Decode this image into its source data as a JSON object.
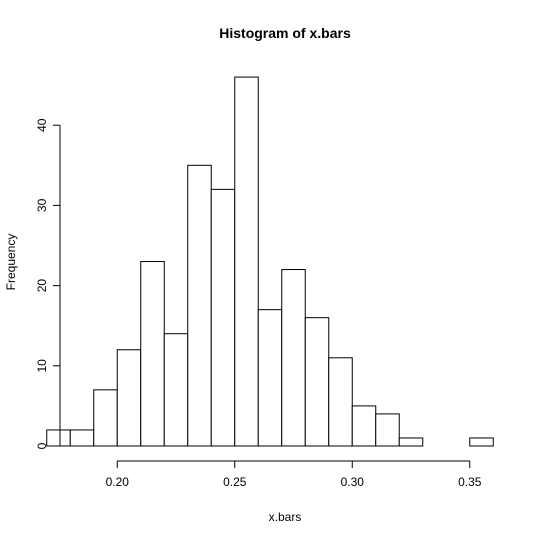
{
  "chart_data": {
    "type": "bar",
    "title": "Histogram of x.bars",
    "xlabel": "x.bars",
    "ylabel": "Frequency",
    "bin_edges": [
      0.17,
      0.18,
      0.19,
      0.2,
      0.21,
      0.22,
      0.23,
      0.24,
      0.25,
      0.26,
      0.27,
      0.28,
      0.29,
      0.3,
      0.31,
      0.32,
      0.33,
      0.34,
      0.35,
      0.36
    ],
    "values": [
      2,
      2,
      7,
      12,
      23,
      14,
      35,
      32,
      46,
      17,
      22,
      16,
      11,
      5,
      4,
      1,
      0,
      0,
      1
    ],
    "xlim": [
      0.165,
      0.365
    ],
    "ylim": [
      0,
      48
    ],
    "x_ticks": [
      "0.20",
      "0.25",
      "0.30",
      "0.35"
    ],
    "x_tick_values": [
      0.2,
      0.25,
      0.3,
      0.35
    ],
    "y_ticks": [
      "0",
      "10",
      "20",
      "30",
      "40"
    ],
    "y_tick_values": [
      0,
      10,
      20,
      30,
      40
    ],
    "grid": false,
    "legend": "none",
    "colors": {
      "bar_fill": "#ffffff",
      "bar_stroke": "#000000",
      "axis": "#000000",
      "background": "#ffffff"
    }
  }
}
